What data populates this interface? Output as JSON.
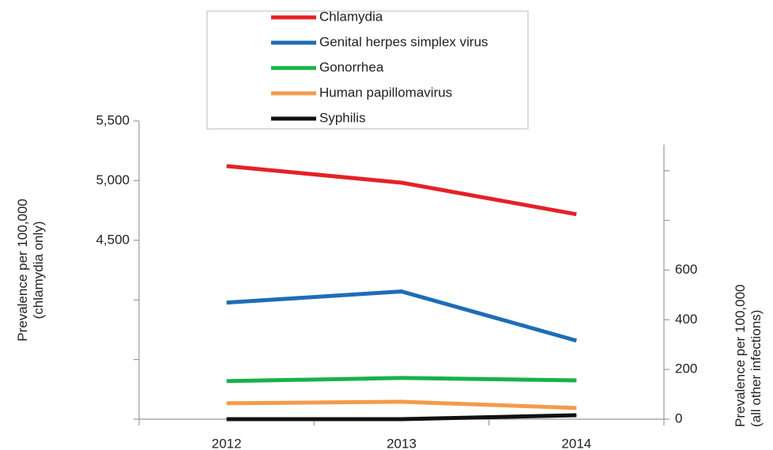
{
  "chart_data": {
    "type": "line",
    "categories": [
      "2012",
      "2013",
      "2014"
    ],
    "y_label": [
      "Prevalence per 100,000",
      "(chlamydia only)"
    ],
    "y2_label": [
      "Prevalence per 100,000",
      "(all other infections)"
    ],
    "ylim": [
      3000,
      5500
    ],
    "yticks": [
      {
        "value": 4500,
        "label": "4,500"
      },
      {
        "value": 5000,
        "label": "5,000"
      },
      {
        "value": 5500,
        "label": "5,500"
      }
    ],
    "yticks_minor": [
      3000,
      3500,
      4000
    ],
    "y2lim": [
      0,
      1200
    ],
    "y2ticks": [
      0,
      200,
      400,
      600
    ],
    "y2ticks_minor": [
      800,
      1000
    ],
    "legend": "top",
    "series": [
      {
        "name": "Chlamydia",
        "color": "#e32227",
        "values": [
          5122,
          4983,
          4718
        ]
      },
      {
        "name": "Genital herpes simplex virus",
        "color": "#1f6db5",
        "axis": "y2",
        "values": [
          469,
          514,
          316
        ]
      },
      {
        "name": "Gonorrhea",
        "color": "#18b14b",
        "axis": "y2",
        "values": [
          153,
          166,
          156
        ]
      },
      {
        "name": "Human papillomavirus",
        "color": "#f49b4b",
        "axis": "y2",
        "values": [
          64,
          70,
          45
        ]
      },
      {
        "name": "Syphilis",
        "color": "#111111",
        "axis": "y2",
        "values": [
          0,
          0,
          16
        ]
      }
    ]
  }
}
